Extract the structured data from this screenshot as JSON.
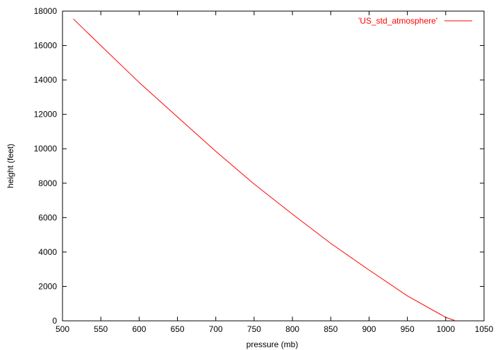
{
  "chart_data": {
    "type": "line",
    "title": "",
    "xlabel": "pressure (mb)",
    "ylabel": "height (feet)",
    "xlim": [
      500,
      1050
    ],
    "ylim": [
      0,
      18000
    ],
    "x_ticks": [
      500,
      550,
      600,
      650,
      700,
      750,
      800,
      850,
      900,
      950,
      1000,
      1050
    ],
    "y_ticks": [
      0,
      2000,
      4000,
      6000,
      8000,
      10000,
      12000,
      14000,
      16000,
      18000
    ],
    "grid": false,
    "legend_position": "top-right",
    "series": [
      {
        "name": "'US_std_atmosphere'",
        "color": "#ff0000",
        "x": [
          514,
          550,
          600,
          650,
          700,
          750,
          800,
          850,
          900,
          950,
          1000,
          1013
        ],
        "y": [
          17550,
          16000,
          13850,
          11850,
          9850,
          7950,
          6200,
          4500,
          2950,
          1450,
          200,
          0
        ]
      }
    ]
  }
}
